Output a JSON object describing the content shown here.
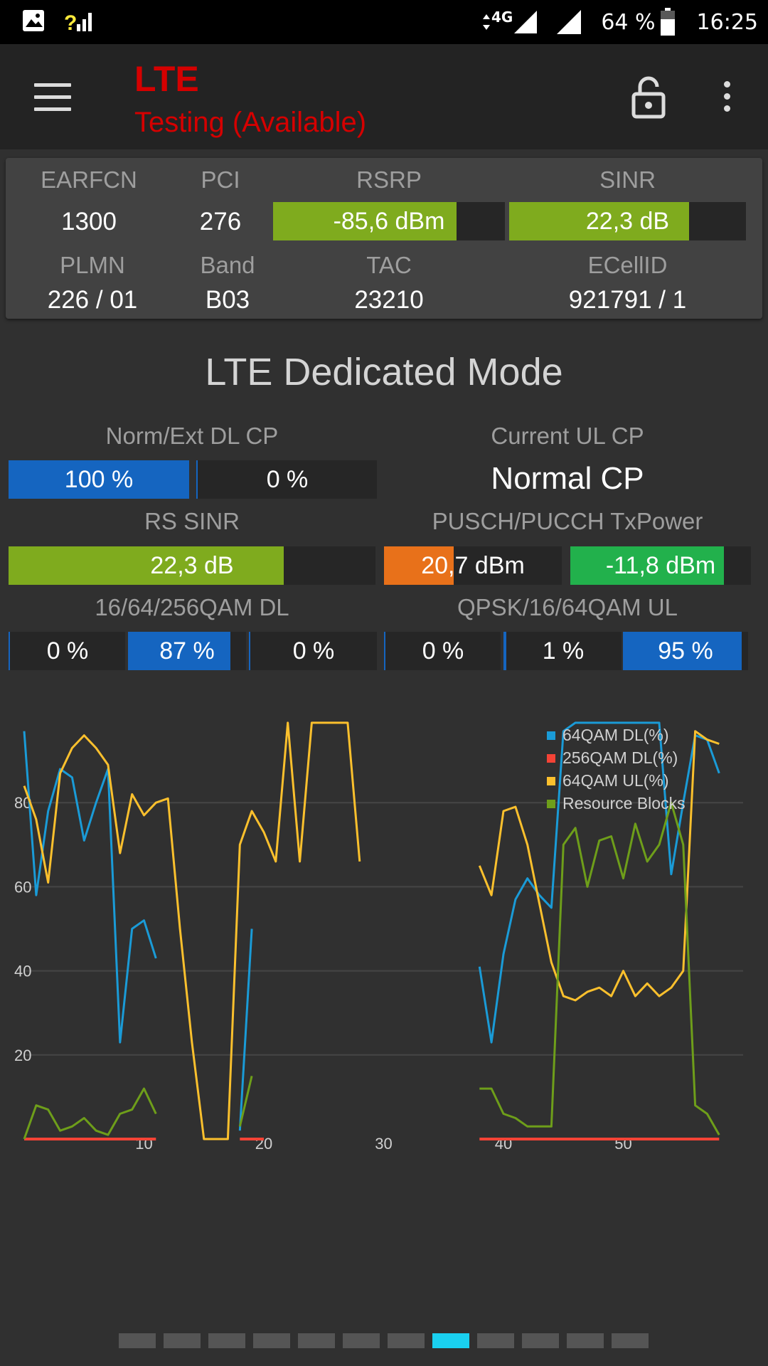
{
  "status_bar": {
    "network_type": "4G",
    "battery": "64 %",
    "time": "16:25",
    "icons": [
      "image-icon",
      "signal-unknown-icon",
      "data-arrows-icon",
      "signal-icon",
      "signal-full-icon",
      "battery-icon"
    ]
  },
  "app_bar": {
    "title": "LTE",
    "subtitle": "Testing (Available)",
    "title_color": "#d50000",
    "icons": [
      "menu-icon",
      "lock-open-icon",
      "more-vert-icon"
    ]
  },
  "cell_info": {
    "earfcn_label": "EARFCN",
    "earfcn": "1300",
    "pci_label": "PCI",
    "pci": "276",
    "rsrp_label": "RSRP",
    "rsrp": "-85,6 dBm",
    "rsrp_fill": 0.79,
    "sinr_label": "SINR",
    "sinr": "22,3 dB",
    "sinr_fill": 0.76,
    "plmn_label": "PLMN",
    "plmn": "226 / 01",
    "band_label": "Band",
    "band": "B03",
    "tac_label": "TAC",
    "tac": "23210",
    "ecellid_label": "ECellID",
    "ecellid": "921791 / 1"
  },
  "section_title": "LTE Dedicated Mode",
  "metrics": {
    "dl_cp_label": "Norm/Ext DL CP",
    "dl_cp_norm": "100 %",
    "dl_cp_norm_fill": 1.0,
    "dl_cp_ext": "0 %",
    "dl_cp_ext_fill": 0.0,
    "ul_cp_label": "Current UL CP",
    "ul_cp_value": "Normal CP",
    "rs_sinr_label": "RS SINR",
    "rs_sinr": "22,3 dB",
    "rs_sinr_fill": 0.75,
    "txpower_label": "PUSCH/PUCCH TxPower",
    "pusch": "20,7 dBm",
    "pusch_fill": 0.39,
    "pucch": "-11,8 dBm",
    "pucch_fill": 0.85,
    "dl_qam_label": "16/64/256QAM DL",
    "dl_16qam": "0 %",
    "dl_64qam": "87 %",
    "dl_256qam": "0 %",
    "dl_fills": [
      0.0,
      0.87,
      0.0
    ],
    "ul_qam_label": "QPSK/16/64QAM UL",
    "ul_qpsk": "0 %",
    "ul_16qam": "1 %",
    "ul_64qam": "95 %",
    "ul_fills": [
      0.0,
      0.01,
      0.95
    ]
  },
  "colors": {
    "green_bar": "#7fab1e",
    "bright_green": "#22b14c",
    "orange_bar": "#e8711a",
    "blue_bar": "#1565c0",
    "cyan": "#1a9bd7",
    "red": "#f44336",
    "yellow": "#fbc02d",
    "olive": "#6e9e1a",
    "pager_active": "#1ad0f0"
  },
  "chart_data": {
    "type": "line",
    "xlim": [
      0,
      60
    ],
    "ylim": [
      0,
      100
    ],
    "x_ticks": [
      "10",
      "20",
      "30",
      "40",
      "50"
    ],
    "y_ticks": [
      "20",
      "40",
      "60",
      "80"
    ],
    "grid": true,
    "legend_position": "top-right",
    "series": [
      {
        "name": "64QAM DL(%)",
        "color": "#1a9bd7",
        "segments": [
          [
            [
              0,
              97
            ],
            [
              1,
              58
            ],
            [
              2,
              78
            ],
            [
              3,
              88
            ],
            [
              4,
              86
            ],
            [
              5,
              71
            ],
            [
              6,
              80
            ],
            [
              7,
              88
            ],
            [
              8,
              23
            ],
            [
              9,
              50
            ],
            [
              10,
              52
            ],
            [
              11,
              43
            ]
          ],
          [
            [
              18,
              2
            ],
            [
              19,
              50
            ]
          ],
          [
            [
              38,
              41
            ],
            [
              39,
              23
            ],
            [
              40,
              44
            ],
            [
              41,
              57
            ],
            [
              42,
              62
            ],
            [
              43,
              58
            ],
            [
              44,
              55
            ],
            [
              45,
              97
            ],
            [
              46,
              99
            ],
            [
              47,
              99
            ],
            [
              48,
              99
            ],
            [
              49,
              99
            ],
            [
              50,
              99
            ],
            [
              51,
              99
            ],
            [
              52,
              99
            ],
            [
              53,
              99
            ],
            [
              54,
              63
            ],
            [
              55,
              80
            ],
            [
              56,
              96
            ],
            [
              57,
              95
            ],
            [
              58,
              87
            ]
          ]
        ]
      },
      {
        "name": "256QAM DL(%)",
        "color": "#f44336",
        "segments": [
          [
            [
              0,
              0
            ],
            [
              11,
              0
            ]
          ],
          [
            [
              18,
              0
            ],
            [
              20,
              0
            ]
          ],
          [
            [
              38,
              0
            ],
            [
              58,
              0
            ]
          ]
        ]
      },
      {
        "name": "64QAM UL(%)",
        "color": "#fbc02d",
        "segments": [
          [
            [
              0,
              84
            ],
            [
              1,
              76
            ],
            [
              2,
              61
            ],
            [
              3,
              87
            ],
            [
              4,
              93
            ],
            [
              5,
              96
            ],
            [
              6,
              93
            ],
            [
              7,
              89
            ],
            [
              8,
              68
            ],
            [
              9,
              82
            ],
            [
              10,
              77
            ],
            [
              11,
              80
            ],
            [
              12,
              81
            ],
            [
              13,
              50
            ],
            [
              14,
              23
            ],
            [
              15,
              0
            ],
            [
              16,
              0
            ],
            [
              17,
              0
            ],
            [
              18,
              70
            ],
            [
              19,
              78
            ],
            [
              20,
              73
            ],
            [
              21,
              66
            ],
            [
              22,
              99
            ],
            [
              23,
              66
            ],
            [
              24,
              99
            ],
            [
              25,
              99
            ],
            [
              26,
              99
            ],
            [
              27,
              99
            ],
            [
              28,
              66
            ]
          ],
          [
            [
              38,
              65
            ],
            [
              39,
              58
            ],
            [
              40,
              78
            ],
            [
              41,
              79
            ],
            [
              42,
              70
            ],
            [
              43,
              56
            ],
            [
              44,
              42
            ],
            [
              45,
              34
            ],
            [
              46,
              33
            ],
            [
              47,
              35
            ],
            [
              48,
              36
            ],
            [
              49,
              34
            ],
            [
              50,
              40
            ],
            [
              51,
              34
            ],
            [
              52,
              37
            ],
            [
              53,
              34
            ],
            [
              54,
              36
            ],
            [
              55,
              40
            ],
            [
              56,
              97
            ],
            [
              57,
              95
            ],
            [
              58,
              94
            ]
          ]
        ]
      },
      {
        "name": "Resource Blocks",
        "color": "#6e9e1a",
        "segments": [
          [
            [
              0,
              0
            ],
            [
              1,
              8
            ],
            [
              2,
              7
            ],
            [
              3,
              2
            ],
            [
              4,
              3
            ],
            [
              5,
              5
            ],
            [
              6,
              2
            ],
            [
              7,
              1
            ],
            [
              8,
              6
            ],
            [
              9,
              7
            ],
            [
              10,
              12
            ],
            [
              11,
              6
            ]
          ],
          [
            [
              18,
              3
            ],
            [
              19,
              15
            ]
          ],
          [
            [
              38,
              12
            ],
            [
              39,
              12
            ],
            [
              40,
              6
            ],
            [
              41,
              5
            ],
            [
              42,
              3
            ],
            [
              43,
              3
            ],
            [
              44,
              3
            ],
            [
              45,
              70
            ],
            [
              46,
              74
            ],
            [
              47,
              60
            ],
            [
              48,
              71
            ],
            [
              49,
              72
            ],
            [
              50,
              62
            ],
            [
              51,
              75
            ],
            [
              52,
              66
            ],
            [
              53,
              70
            ],
            [
              54,
              80
            ],
            [
              55,
              70
            ],
            [
              56,
              8
            ],
            [
              57,
              6
            ],
            [
              58,
              1
            ]
          ]
        ]
      }
    ]
  },
  "pager": {
    "count": 12,
    "active_index": 7
  }
}
